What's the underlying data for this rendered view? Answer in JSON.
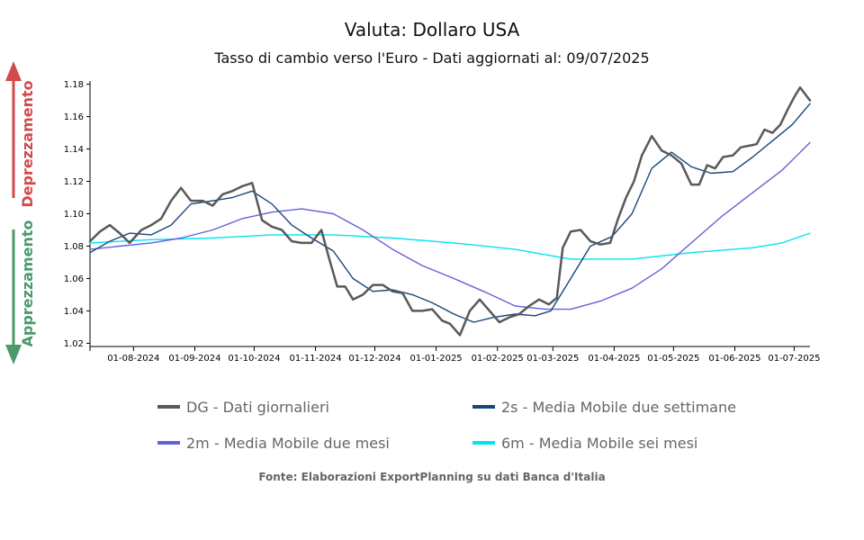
{
  "title": "Valuta: Dollaro USA",
  "subtitle": "Tasso di cambio verso l'Euro - Dati aggiornati al: 09/07/2025",
  "source": "Fonte: Elaborazioni ExportPlanning su dati Banca d'Italia",
  "indicators": {
    "up_label": "Deprezzamento",
    "up_color": "#d04b4b",
    "down_label": "Apprezzamento",
    "down_color": "#4a9a6a"
  },
  "chart_data": {
    "type": "line",
    "title": "Valuta: Dollaro USA",
    "subtitle": "Tasso di cambio verso l'Euro - Dati aggiornati al: 09/07/2025",
    "xlabel": "",
    "ylabel": "",
    "xlim": [
      "2024-07-10",
      "2025-07-09"
    ],
    "ylim": [
      1.018,
      1.182
    ],
    "y_ticks": [
      1.02,
      1.04,
      1.06,
      1.08,
      1.1,
      1.12,
      1.14,
      1.16,
      1.18
    ],
    "y_tick_labels": [
      "1.02",
      "1.04",
      "1.06",
      "1.08",
      "1.10",
      "1.12",
      "1.14",
      "1.16",
      "1.18"
    ],
    "x_ticks": [
      "2024-08-01",
      "2024-09-01",
      "2024-10-01",
      "2024-11-01",
      "2024-12-01",
      "2025-01-01",
      "2025-02-01",
      "2025-03-01",
      "2025-04-01",
      "2025-05-01",
      "2025-06-01",
      "2025-07-01"
    ],
    "x_tick_labels": [
      "01-08-2024",
      "01-09-2024",
      "01-10-2024",
      "01-11-2024",
      "01-12-2024",
      "01-01-2025",
      "01-02-2025",
      "01-03-2025",
      "01-04-2025",
      "01-05-2025",
      "01-06-2025",
      "01-07-2025"
    ],
    "grid": false,
    "legend_position": "bottom",
    "series": [
      {
        "name": "DG - Dati giornalieri",
        "color": "#595959",
        "x": [
          "2024-07-10",
          "2024-07-15",
          "2024-07-20",
          "2024-07-25",
          "2024-07-30",
          "2024-08-05",
          "2024-08-10",
          "2024-08-15",
          "2024-08-20",
          "2024-08-25",
          "2024-08-30",
          "2024-09-05",
          "2024-09-10",
          "2024-09-15",
          "2024-09-20",
          "2024-09-25",
          "2024-09-30",
          "2024-10-05",
          "2024-10-10",
          "2024-10-15",
          "2024-10-20",
          "2024-10-25",
          "2024-10-30",
          "2024-11-04",
          "2024-11-08",
          "2024-11-12",
          "2024-11-16",
          "2024-11-20",
          "2024-11-25",
          "2024-11-30",
          "2024-12-05",
          "2024-12-10",
          "2024-12-15",
          "2024-12-20",
          "2024-12-25",
          "2024-12-30",
          "2025-01-04",
          "2025-01-08",
          "2025-01-13",
          "2025-01-18",
          "2025-01-23",
          "2025-01-28",
          "2025-02-02",
          "2025-02-07",
          "2025-02-12",
          "2025-02-17",
          "2025-02-22",
          "2025-02-27",
          "2025-03-03",
          "2025-03-06",
          "2025-03-10",
          "2025-03-15",
          "2025-03-20",
          "2025-03-25",
          "2025-03-30",
          "2025-04-03",
          "2025-04-07",
          "2025-04-11",
          "2025-04-15",
          "2025-04-20",
          "2025-04-25",
          "2025-04-30",
          "2025-05-05",
          "2025-05-10",
          "2025-05-14",
          "2025-05-18",
          "2025-05-22",
          "2025-05-26",
          "2025-05-31",
          "2025-06-04",
          "2025-06-08",
          "2025-06-12",
          "2025-06-16",
          "2025-06-20",
          "2025-06-24",
          "2025-06-28",
          "2025-07-01",
          "2025-07-04",
          "2025-07-09"
        ],
        "y": [
          1.083,
          1.089,
          1.093,
          1.088,
          1.082,
          1.09,
          1.093,
          1.097,
          1.108,
          1.116,
          1.108,
          1.108,
          1.105,
          1.112,
          1.114,
          1.117,
          1.119,
          1.096,
          1.092,
          1.09,
          1.083,
          1.082,
          1.082,
          1.09,
          1.072,
          1.055,
          1.055,
          1.047,
          1.05,
          1.056,
          1.056,
          1.052,
          1.051,
          1.04,
          1.04,
          1.041,
          1.034,
          1.032,
          1.025,
          1.04,
          1.047,
          1.04,
          1.033,
          1.036,
          1.038,
          1.043,
          1.047,
          1.044,
          1.048,
          1.079,
          1.089,
          1.09,
          1.083,
          1.081,
          1.082,
          1.097,
          1.11,
          1.12,
          1.136,
          1.148,
          1.139,
          1.136,
          1.131,
          1.118,
          1.118,
          1.13,
          1.128,
          1.135,
          1.136,
          1.141,
          1.142,
          1.143,
          1.152,
          1.15,
          1.155,
          1.165,
          1.172,
          1.178,
          1.17
        ]
      },
      {
        "name": "2s - Media Mobile due settimane",
        "color": "#17467c",
        "x": [
          "2024-07-10",
          "2024-07-20",
          "2024-07-30",
          "2024-08-10",
          "2024-08-20",
          "2024-08-30",
          "2024-09-10",
          "2024-09-20",
          "2024-09-30",
          "2024-10-10",
          "2024-10-20",
          "2024-10-30",
          "2024-11-10",
          "2024-11-20",
          "2024-11-30",
          "2024-12-10",
          "2024-12-20",
          "2024-12-30",
          "2025-01-10",
          "2025-01-20",
          "2025-01-30",
          "2025-02-10",
          "2025-02-20",
          "2025-02-28",
          "2025-03-10",
          "2025-03-20",
          "2025-03-31",
          "2025-04-10",
          "2025-04-20",
          "2025-04-30",
          "2025-05-10",
          "2025-05-20",
          "2025-05-31",
          "2025-06-10",
          "2025-06-20",
          "2025-06-30",
          "2025-07-09"
        ],
        "y": [
          1.076,
          1.083,
          1.088,
          1.087,
          1.093,
          1.106,
          1.108,
          1.11,
          1.114,
          1.106,
          1.093,
          1.085,
          1.077,
          1.06,
          1.052,
          1.053,
          1.05,
          1.045,
          1.038,
          1.033,
          1.036,
          1.038,
          1.037,
          1.04,
          1.06,
          1.08,
          1.086,
          1.1,
          1.128,
          1.138,
          1.129,
          1.125,
          1.126,
          1.135,
          1.145,
          1.155,
          1.168
        ]
      },
      {
        "name": "2m - Media Mobile due mesi",
        "color": "#6660d8",
        "x": [
          "2024-07-10",
          "2024-07-25",
          "2024-08-10",
          "2024-08-25",
          "2024-09-10",
          "2024-09-25",
          "2024-10-10",
          "2024-10-25",
          "2024-11-10",
          "2024-11-25",
          "2024-12-10",
          "2024-12-25",
          "2025-01-10",
          "2025-01-25",
          "2025-02-10",
          "2025-02-25",
          "2025-03-10",
          "2025-03-25",
          "2025-04-10",
          "2025-04-25",
          "2025-05-10",
          "2025-05-25",
          "2025-06-10",
          "2025-06-25",
          "2025-07-09"
        ],
        "y": [
          1.078,
          1.08,
          1.082,
          1.085,
          1.09,
          1.097,
          1.101,
          1.103,
          1.1,
          1.09,
          1.078,
          1.068,
          1.06,
          1.052,
          1.043,
          1.041,
          1.041,
          1.046,
          1.054,
          1.066,
          1.082,
          1.098,
          1.113,
          1.127,
          1.144
        ]
      },
      {
        "name": "6m - Media Mobile sei mesi",
        "color": "#00e5ee",
        "x": [
          "2024-07-10",
          "2024-08-10",
          "2024-09-10",
          "2024-10-10",
          "2024-11-10",
          "2024-12-10",
          "2025-01-10",
          "2025-02-10",
          "2025-03-10",
          "2025-04-10",
          "2025-05-10",
          "2025-06-10",
          "2025-06-25",
          "2025-07-09"
        ],
        "y": [
          1.082,
          1.084,
          1.085,
          1.087,
          1.087,
          1.085,
          1.082,
          1.078,
          1.072,
          1.072,
          1.076,
          1.079,
          1.082,
          1.088
        ]
      }
    ]
  }
}
